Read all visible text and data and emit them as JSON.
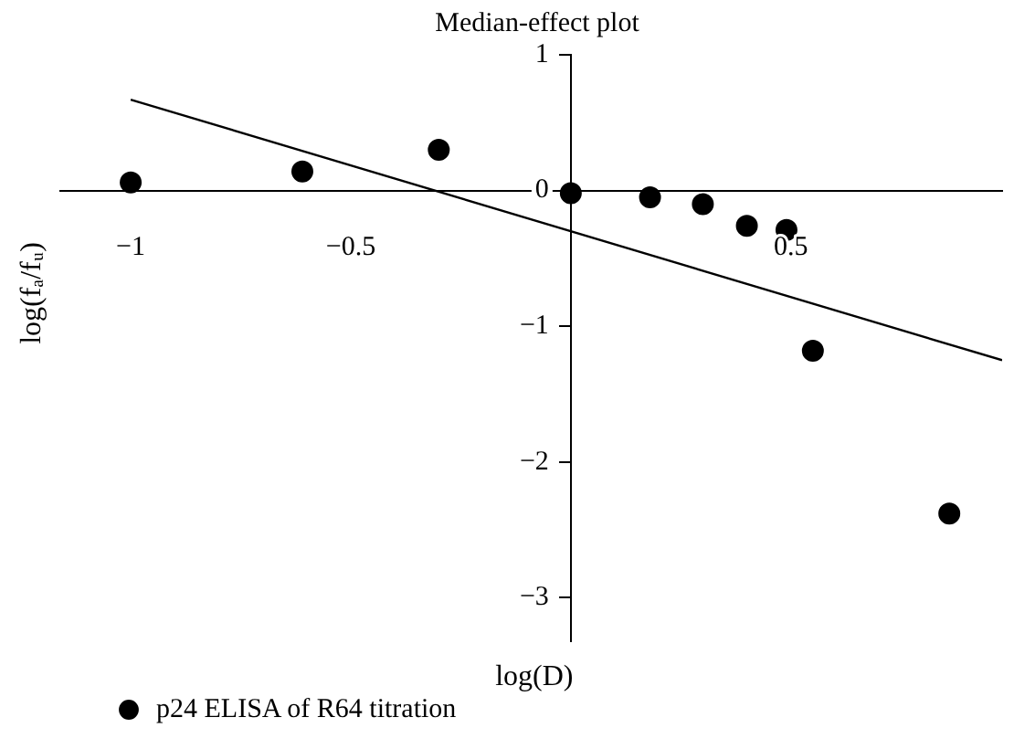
{
  "chart_data": {
    "type": "scatter",
    "title": "Median-effect plot",
    "xlabel": "log(D)",
    "ylabel": "log(fₐ/fᵤ)",
    "xlim": [
      -1.16,
      0.98
    ],
    "ylim": [
      -3.32,
      1
    ],
    "xticks": [
      -1,
      -0.5,
      0.5
    ],
    "yticks": [
      1,
      0,
      -1,
      -2,
      -3
    ],
    "grid": false,
    "legend": "bottom left",
    "series": [
      {
        "name": "p24 ELISA of R64 titration",
        "type": "scatter",
        "marker": "circle",
        "color": "#000000",
        "x": [
          -1.0,
          -0.61,
          -0.3,
          0.0,
          0.18,
          0.3,
          0.4,
          0.49,
          0.55,
          0.86
        ],
        "values": [
          0.06,
          0.14,
          0.3,
          -0.02,
          -0.05,
          -0.1,
          -0.26,
          -0.29,
          -1.18,
          -2.38
        ]
      },
      {
        "type": "line",
        "marker": "none",
        "color": "#000000",
        "x": [
          -1.0,
          0.98
        ],
        "values": [
          0.67,
          -1.25
        ]
      }
    ]
  }
}
